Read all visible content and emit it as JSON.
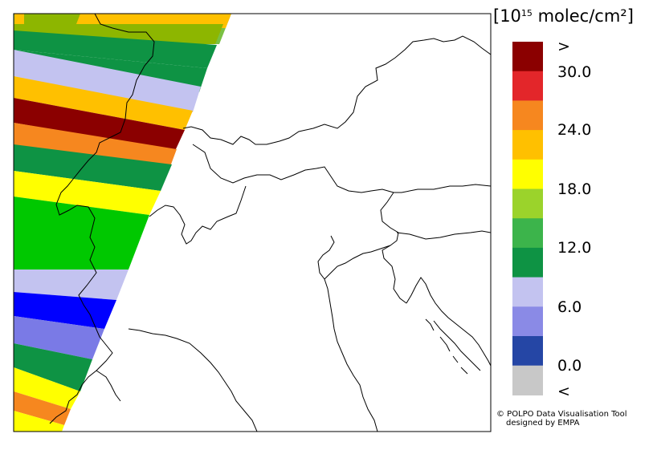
{
  "colorbar": {
    "unit_open": "[10",
    "unit_exp": "15",
    "unit_rest": " molec/cm²]",
    "labels": [
      ">",
      "30.0",
      "24.0",
      "18.0",
      "12.0",
      "6.0",
      "0.0",
      "<"
    ],
    "colors_top_to_bottom": [
      "#8b0000",
      "#e3262a",
      "#f6871f",
      "#ffc000",
      "#ffff00",
      "#9bd32b",
      "#3cb44b",
      "#0e9344",
      "#c3c3f0",
      "#8a8ae6",
      "#2546a5",
      "#c8c8c8"
    ]
  },
  "swath_bands_top_to_bottom": [
    "#aaaaaa",
    "#8db600",
    "#7ac143",
    "#0e9344",
    "#c3c3f0",
    "#ffc000",
    "#8b0000",
    "#f6871f",
    "#0e9344",
    "#ffff00",
    "#00c800",
    "#c3c3f0",
    "#0000ff",
    "#7a7ae6",
    "#0e9344",
    "#ffff00",
    "#f6871f",
    "#ffff00"
  ],
  "credit": {
    "line1": "© POLPO Data Visualisation Tool",
    "line2": "designed by EMPA"
  }
}
